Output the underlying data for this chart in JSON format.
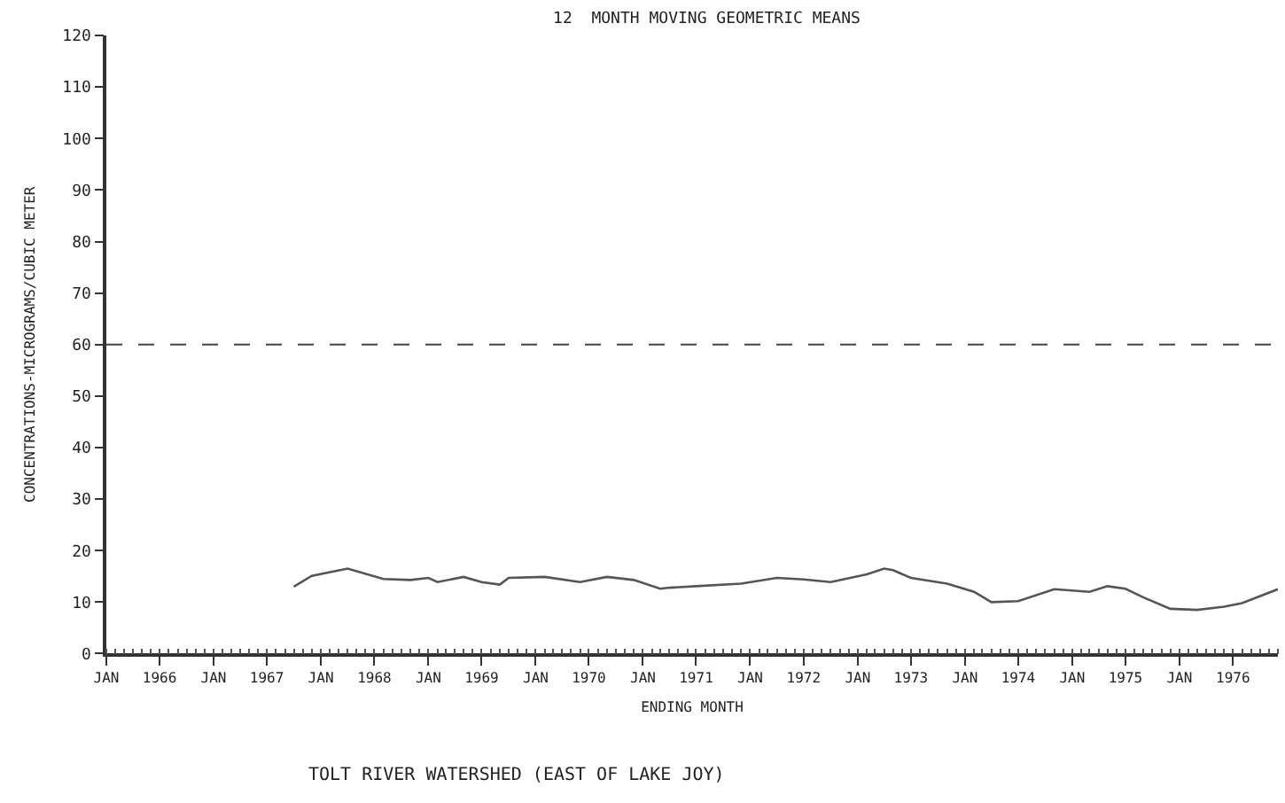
{
  "chart_data": {
    "type": "line",
    "title": "12  MONTH MOVING GEOMETRIC MEANS",
    "xlabel": "ENDING MONTH",
    "ylabel": "CONCENTRATIONS-MICROGRAMS/CUBIC METER",
    "annotations": [
      "TOLT RIVER WATERSHED (EAST OF LAKE JOY)"
    ],
    "x": [
      "1967-10",
      "1967-12",
      "1968-04",
      "1968-08",
      "1968-11",
      "1969-01",
      "1969-02",
      "1969-05",
      "1969-07",
      "1969-09",
      "1969-10",
      "1970-02",
      "1970-06",
      "1970-09",
      "1970-12",
      "1971-03",
      "1971-04",
      "1971-07",
      "1971-12",
      "1972-04",
      "1972-07",
      "1972-10",
      "1973-02",
      "1973-04",
      "1973-05",
      "1973-07",
      "1973-11",
      "1974-02",
      "1974-04",
      "1974-07",
      "1974-11",
      "1975-03",
      "1975-05",
      "1975-07",
      "1975-09",
      "1975-12",
      "1976-03",
      "1976-06",
      "1976-08",
      "1976-12"
    ],
    "series": [
      {
        "color": "#555555",
        "values": [
          13.0,
          15.1,
          16.5,
          14.5,
          14.3,
          14.7,
          13.9,
          14.9,
          13.9,
          13.4,
          14.7,
          14.9,
          13.9,
          14.9,
          14.3,
          12.6,
          12.8,
          13.1,
          13.6,
          14.7,
          14.4,
          13.9,
          15.4,
          16.5,
          16.2,
          14.7,
          13.6,
          12.0,
          10.0,
          10.2,
          12.5,
          12.0,
          13.1,
          12.6,
          10.9,
          8.7,
          8.5,
          9.1,
          9.8,
          12.5
        ]
      }
    ],
    "xlim": [
      "1966-01",
      "1976-12"
    ],
    "xticks": [
      {
        "value": "1966-01",
        "label": "JAN"
      },
      {
        "value": "1967-01",
        "label": "JAN"
      },
      {
        "value": "1968-01",
        "label": "JAN"
      },
      {
        "value": "1969-01",
        "label": "JAN"
      },
      {
        "value": "1970-01",
        "label": "JAN"
      },
      {
        "value": "1971-01",
        "label": "JAN"
      },
      {
        "value": "1972-01",
        "label": "JAN"
      },
      {
        "value": "1973-01",
        "label": "JAN"
      },
      {
        "value": "1974-01",
        "label": "JAN"
      },
      {
        "value": "1975-01",
        "label": "JAN"
      },
      {
        "value": "1976-01",
        "label": "JAN"
      },
      {
        "value": "1966-07",
        "label": "1966"
      },
      {
        "value": "1967-07",
        "label": "1967"
      },
      {
        "value": "1968-07",
        "label": "1968"
      },
      {
        "value": "1969-07",
        "label": "1969"
      },
      {
        "value": "1970-07",
        "label": "1970"
      },
      {
        "value": "1971-07",
        "label": "1971"
      },
      {
        "value": "1972-07",
        "label": "1972"
      },
      {
        "value": "1973-07",
        "label": "1973"
      },
      {
        "value": "1974-07",
        "label": "1974"
      },
      {
        "value": "1975-07",
        "label": "1975"
      },
      {
        "value": "1976-07",
        "label": "1976"
      }
    ],
    "ylim": [
      0,
      120
    ],
    "yticks": [
      0,
      10,
      20,
      30,
      40,
      50,
      60,
      70,
      80,
      90,
      100,
      110,
      120
    ],
    "ref_lines": [
      {
        "axis": "y",
        "value": 60,
        "line_style": "dashed",
        "color": "#444444"
      }
    ],
    "grid": false,
    "marker": "none",
    "line_style": "solid"
  }
}
